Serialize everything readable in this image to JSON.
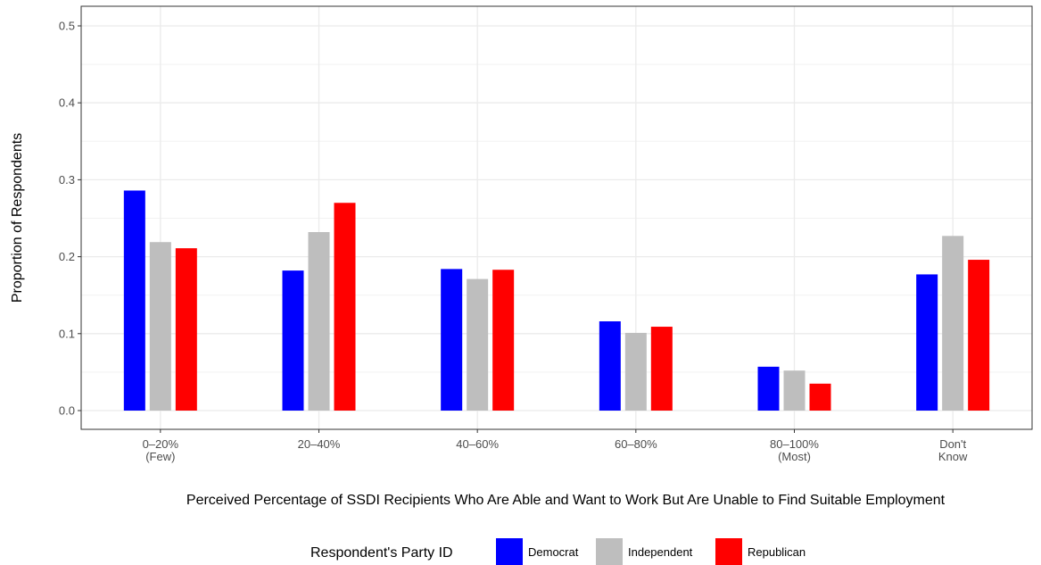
{
  "chart_data": {
    "type": "bar",
    "xlabel": "Perceived Percentage of SSDI Recipients Who Are Able and Want to Work But Are Unable to Find Suitable Employment",
    "ylabel": "Proportion of Respondents",
    "ylim": [
      0,
      0.5
    ],
    "yticks": [
      "0.0",
      "0.1",
      "0.2",
      "0.3",
      "0.4",
      "0.5"
    ],
    "categories": [
      [
        "0–20%",
        "(Few)"
      ],
      [
        "20–40%"
      ],
      [
        "40–60%"
      ],
      [
        "60–80%"
      ],
      [
        "80–100%",
        "(Most)"
      ],
      [
        "Don't",
        "Know"
      ]
    ],
    "series": [
      {
        "name": "Democrat",
        "color": "#0000ff",
        "values": [
          0.286,
          0.182,
          0.184,
          0.116,
          0.057,
          0.177
        ]
      },
      {
        "name": "Independent",
        "color": "#bebebe",
        "values": [
          0.219,
          0.232,
          0.171,
          0.101,
          0.052,
          0.227
        ]
      },
      {
        "name": "Republican",
        "color": "#ff0000",
        "values": [
          0.211,
          0.27,
          0.183,
          0.109,
          0.035,
          0.196
        ]
      }
    ],
    "grid": true,
    "legend": {
      "title": "Respondent's Party ID",
      "placement": "bottom"
    }
  }
}
